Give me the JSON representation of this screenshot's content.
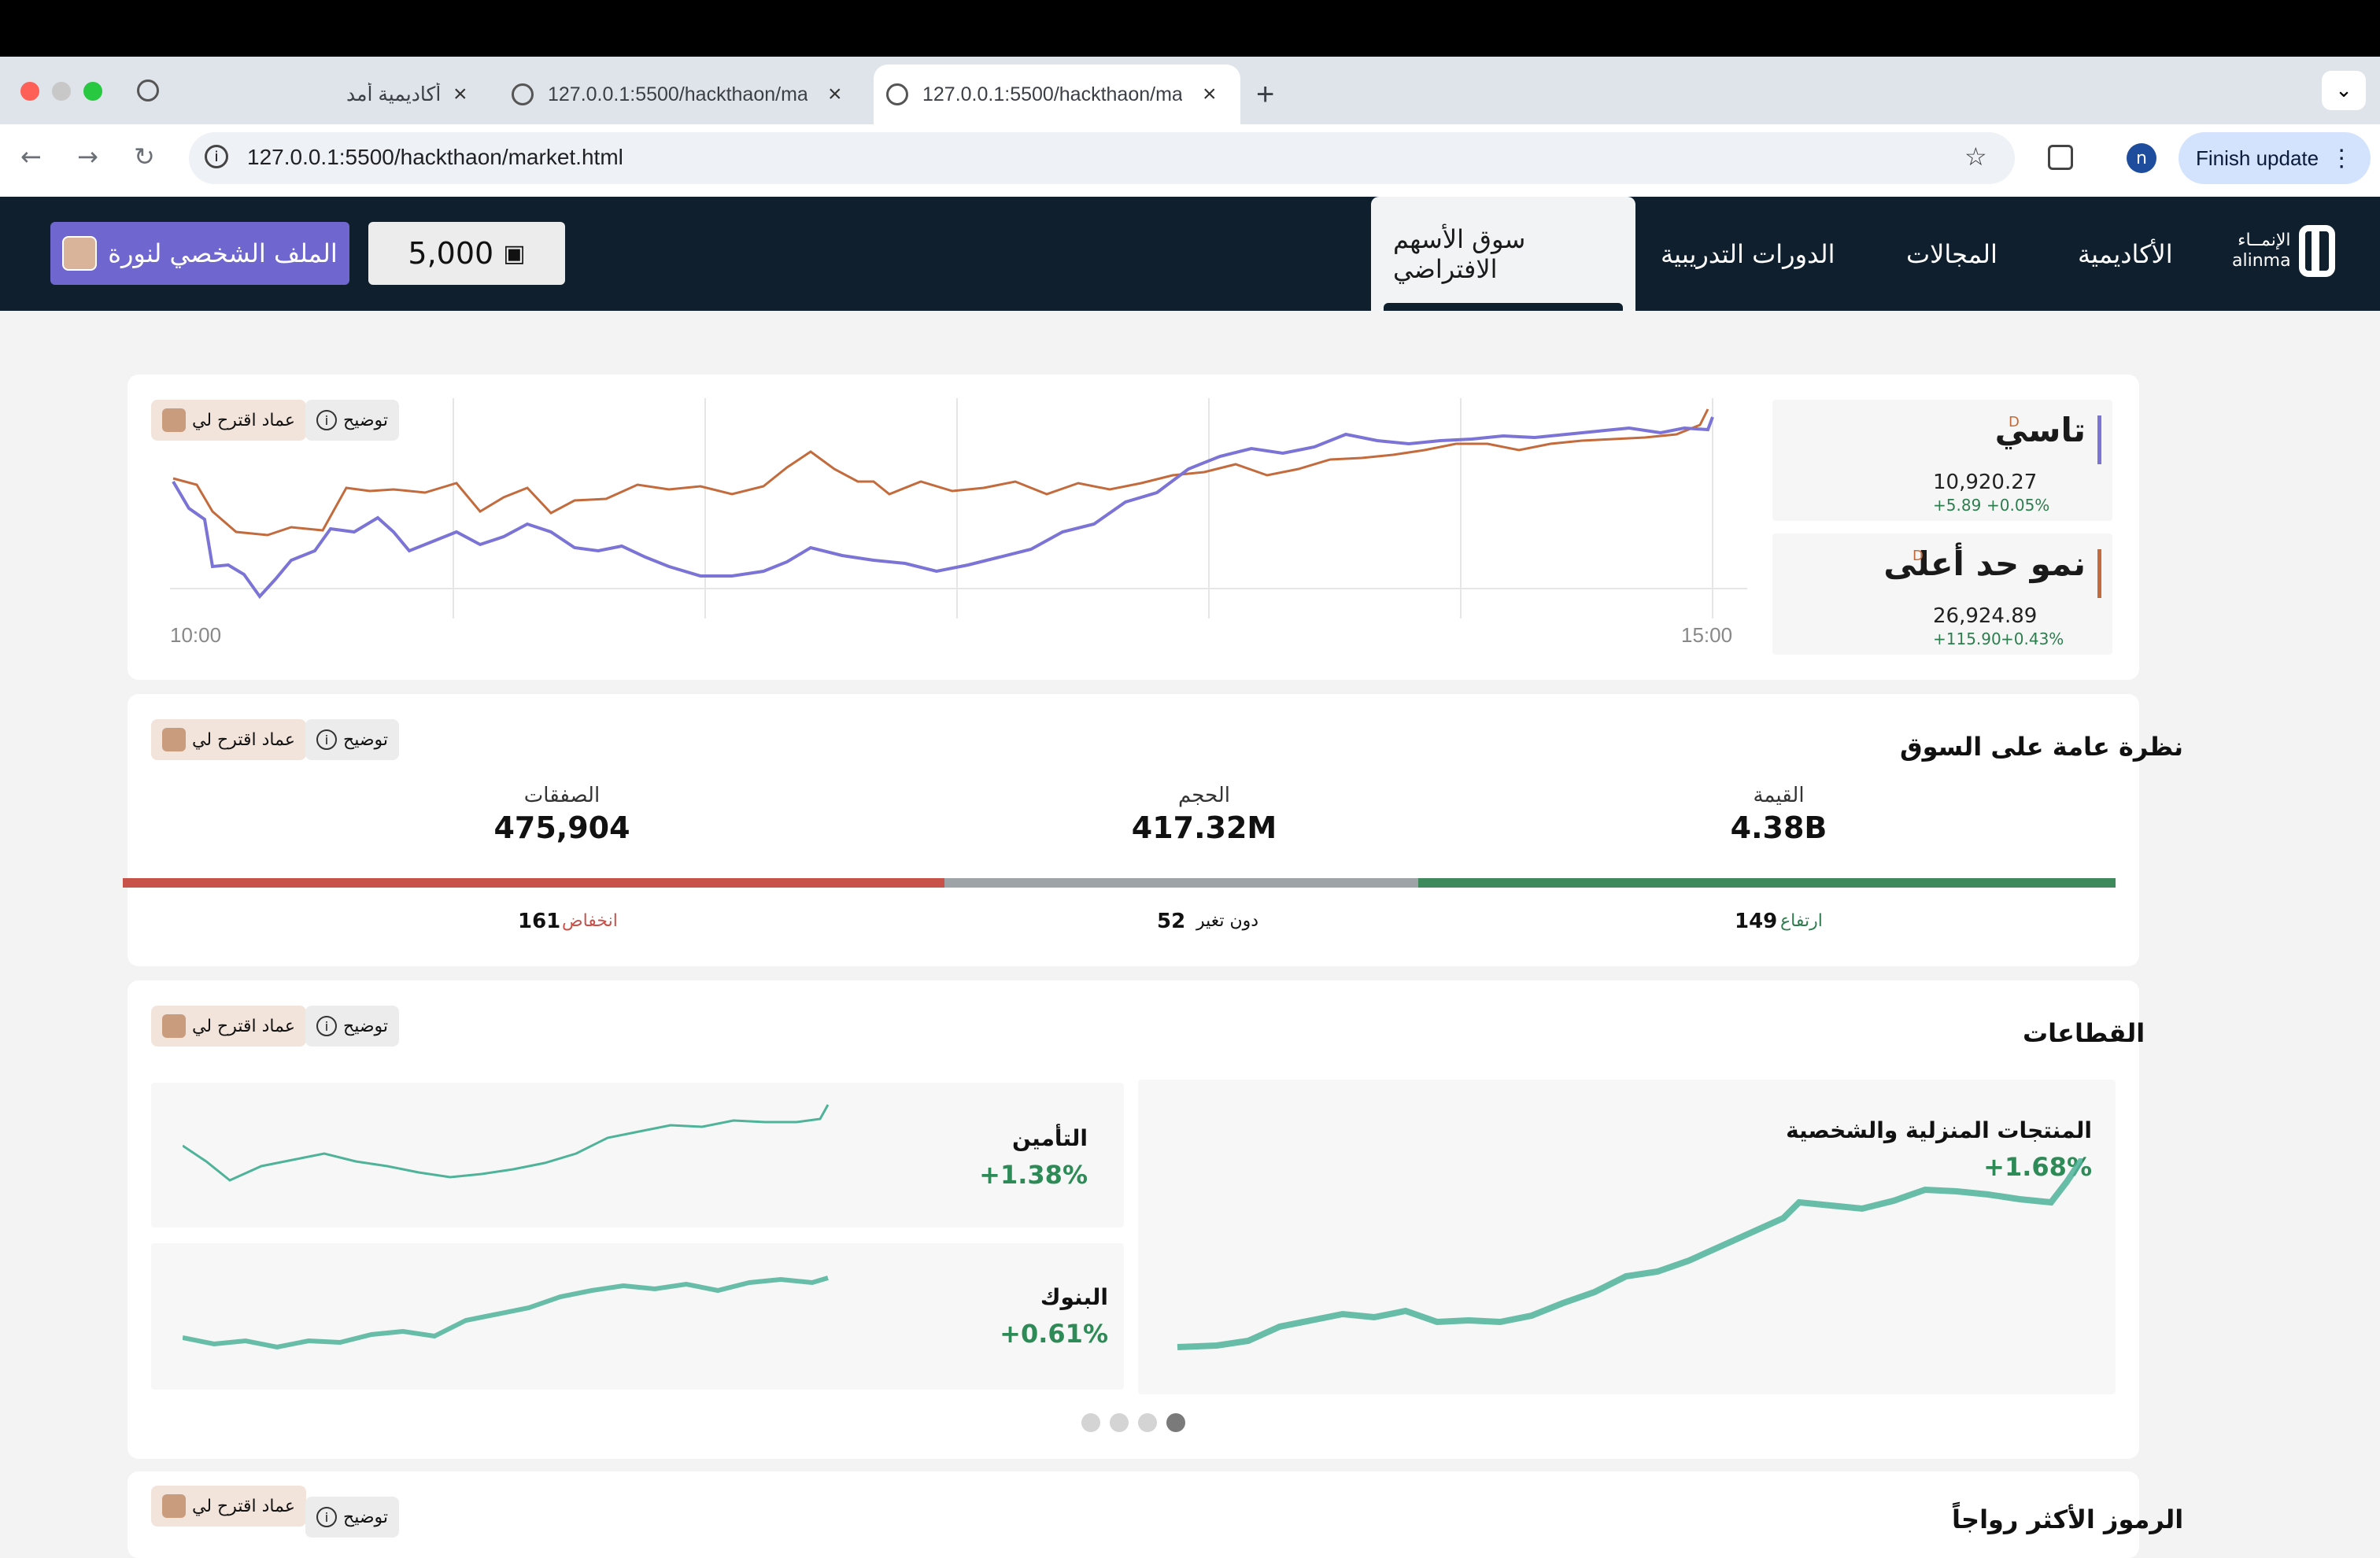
{
  "browser": {
    "tabs": [
      {
        "title": "أكاديمية أمد"
      },
      {
        "title": "127.0.0.1:5500/hackthaon/ma"
      },
      {
        "title": "127.0.0.1:5500/hackthaon/ma"
      }
    ],
    "url": "127.0.0.1:5500/hackthaon/market.html",
    "profile_initial": "n",
    "update_label": "Finish update"
  },
  "nav": {
    "logo_ar": "الإنمــاء",
    "logo_en": "alinma",
    "items": [
      "الأكاديمية",
      "المجالات",
      "الدورات التدريبية",
      "سوق الأسهم الافتراضي"
    ],
    "points": "5,000",
    "profile_label": "الملف الشخصي لنورة"
  },
  "buttons": {
    "explain": "توضيح",
    "ai_suggest": "عماد اقترح لي"
  },
  "indices": [
    {
      "name": "تاسي",
      "tag": "D",
      "value": "10,920.27",
      "change_abs": "+5.89",
      "change_pct": "+0.05%",
      "color": "#7b74d6"
    },
    {
      "name": "نمو حد أعلى",
      "tag": "D",
      "value": "26,924.89",
      "change_abs": "+115.90",
      "change_pct": "+0.43%",
      "color": "#c36b3d"
    }
  ],
  "index_chart": {
    "time_start": "10:00",
    "time_end": "15:00"
  },
  "overview": {
    "title": "نظرة عامة على السوق",
    "value_label": "القيمة",
    "value": "4.38B",
    "volume_label": "الحجم",
    "volume": "417.32M",
    "trades_label": "الصفقات",
    "trades": "475,904",
    "up_label": "ارتفاع",
    "up": "149",
    "flat_label": "دون تغير",
    "flat": "52",
    "down_label": "انخفاض",
    "down": "161"
  },
  "sectors": {
    "title": "القطاعات",
    "items": [
      {
        "name": "المنتجات المنزلية والشخصية",
        "pct": "+1.68%"
      },
      {
        "name": "التأمين",
        "pct": "+1.38%"
      },
      {
        "name": "البنوك",
        "pct": "+0.61%"
      }
    ]
  },
  "trending": {
    "title": "الرموز الأكثر رواجاً"
  }
}
